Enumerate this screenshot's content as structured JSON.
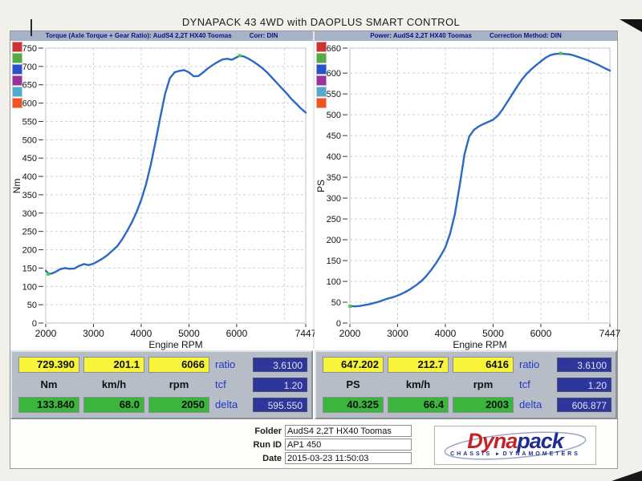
{
  "title": "DYNAPACK 43 4WD with DAOPLUS SMART CONTROL",
  "colors": {
    "curve_blue": "#2c68c5",
    "header_strip": "#a7b1c7",
    "header_text": "#12127e",
    "max_box_yellow": "#f7f43a",
    "min_box_green": "#3cb53c",
    "setting_box_navy": "#2e369b",
    "side_label_blue": "#2036c8",
    "panel_gray": "#b6bdc7",
    "logo_red": "#c42428",
    "logo_blue": "#1f2d8e"
  },
  "chart_data": [
    {
      "type": "line",
      "title": "Torque (Axle Torque + Gear Ratio): AudS4 2,2T HX40 Toomas",
      "correction": "Corr: DIN",
      "xlabel": "Engine RPM",
      "ylabel": "Nm",
      "xlim": [
        2000,
        7447
      ],
      "ylim": [
        0,
        750
      ],
      "x_ticks": [
        2000,
        3000,
        4000,
        5000,
        6000,
        7447
      ],
      "x_gridlines": [
        3000,
        4000,
        5000,
        6000,
        7000
      ],
      "y_ticks": [
        0,
        50,
        100,
        150,
        200,
        250,
        300,
        350,
        400,
        450,
        500,
        550,
        600,
        650,
        700,
        750
      ],
      "grid": true,
      "legend_position": "left",
      "line_color": "#2c68c5",
      "legend_swatches": [
        "#cc3333",
        "#55aa44",
        "#2a52c8",
        "#993399",
        "#55aacc",
        "#ee5522"
      ],
      "series": [
        {
          "name": "AudS4 2,2T HX40 Toomas",
          "points": [
            [
              2000,
              143
            ],
            [
              2060,
              135
            ],
            [
              2120,
              135
            ],
            [
              2200,
              139
            ],
            [
              2300,
              147
            ],
            [
              2400,
              150
            ],
            [
              2500,
              148
            ],
            [
              2600,
              149
            ],
            [
              2700,
              156
            ],
            [
              2800,
              161
            ],
            [
              2900,
              158
            ],
            [
              3000,
              162
            ],
            [
              3100,
              169
            ],
            [
              3200,
              177
            ],
            [
              3300,
              186
            ],
            [
              3400,
              198
            ],
            [
              3500,
              210
            ],
            [
              3600,
              228
            ],
            [
              3700,
              250
            ],
            [
              3800,
              274
            ],
            [
              3900,
              302
            ],
            [
              4000,
              336
            ],
            [
              4100,
              378
            ],
            [
              4200,
              432
            ],
            [
              4300,
              495
            ],
            [
              4400,
              562
            ],
            [
              4500,
              625
            ],
            [
              4600,
              668
            ],
            [
              4700,
              684
            ],
            [
              4800,
              688
            ],
            [
              4900,
              690
            ],
            [
              5000,
              684
            ],
            [
              5100,
              673
            ],
            [
              5200,
              674
            ],
            [
              5300,
              684
            ],
            [
              5400,
              695
            ],
            [
              5500,
              704
            ],
            [
              5600,
              712
            ],
            [
              5700,
              719
            ],
            [
              5800,
              721
            ],
            [
              5900,
              718
            ],
            [
              6000,
              725
            ],
            [
              6066,
              729
            ],
            [
              6150,
              727
            ],
            [
              6250,
              721
            ],
            [
              6350,
              713
            ],
            [
              6450,
              704
            ],
            [
              6550,
              694
            ],
            [
              6650,
              682
            ],
            [
              6750,
              668
            ],
            [
              6850,
              654
            ],
            [
              6950,
              640
            ],
            [
              7050,
              626
            ],
            [
              7150,
              611
            ],
            [
              7250,
              598
            ],
            [
              7350,
              585
            ],
            [
              7447,
              574
            ]
          ]
        }
      ],
      "markers": {
        "min": [
          2050,
          133.84
        ],
        "max": [
          6066,
          729.39
        ]
      }
    },
    {
      "type": "line",
      "title": "Power: AudS4 2,2T HX40 Toomas",
      "correction": "Correction Method: DIN",
      "xlabel": "Engine RPM",
      "ylabel": "PS",
      "xlim": [
        2000,
        7447
      ],
      "ylim": [
        0,
        660
      ],
      "x_ticks": [
        2000,
        3000,
        4000,
        5000,
        6000,
        7447
      ],
      "x_gridlines": [
        3000,
        4000,
        5000,
        6000,
        7000
      ],
      "y_ticks": [
        0,
        50,
        100,
        150,
        200,
        250,
        300,
        350,
        400,
        450,
        500,
        550,
        600,
        660
      ],
      "grid": true,
      "legend_position": "left",
      "line_color": "#2c68c5",
      "legend_swatches": [
        "#cc3333",
        "#55aa44",
        "#2a52c8",
        "#993399",
        "#55aacc",
        "#ee5522"
      ],
      "series": [
        {
          "name": "AudS4 2,2T HX40 Toomas",
          "points": [
            [
              2000,
              41
            ],
            [
              2100,
              40
            ],
            [
              2200,
              41
            ],
            [
              2300,
              43
            ],
            [
              2400,
              45
            ],
            [
              2500,
              48
            ],
            [
              2600,
              51
            ],
            [
              2700,
              55
            ],
            [
              2800,
              59
            ],
            [
              2900,
              62
            ],
            [
              3000,
              66
            ],
            [
              3100,
              71
            ],
            [
              3200,
              77
            ],
            [
              3300,
              84
            ],
            [
              3400,
              92
            ],
            [
              3500,
              101
            ],
            [
              3600,
              113
            ],
            [
              3700,
              127
            ],
            [
              3800,
              143
            ],
            [
              3900,
              161
            ],
            [
              4000,
              182
            ],
            [
              4100,
              215
            ],
            [
              4200,
              262
            ],
            [
              4300,
              330
            ],
            [
              4400,
              405
            ],
            [
              4500,
              448
            ],
            [
              4600,
              464
            ],
            [
              4700,
              472
            ],
            [
              4800,
              478
            ],
            [
              4900,
              483
            ],
            [
              5000,
              488
            ],
            [
              5100,
              498
            ],
            [
              5200,
              513
            ],
            [
              5300,
              531
            ],
            [
              5400,
              549
            ],
            [
              5500,
              567
            ],
            [
              5600,
              584
            ],
            [
              5700,
              598
            ],
            [
              5800,
              609
            ],
            [
              5900,
              619
            ],
            [
              6000,
              628
            ],
            [
              6100,
              637
            ],
            [
              6200,
              643
            ],
            [
              6300,
              646
            ],
            [
              6416,
              647
            ],
            [
              6500,
              646
            ],
            [
              6600,
              645
            ],
            [
              6700,
              642
            ],
            [
              6800,
              638
            ],
            [
              6900,
              634
            ],
            [
              7000,
              630
            ],
            [
              7100,
              625
            ],
            [
              7200,
              620
            ],
            [
              7300,
              614
            ],
            [
              7447,
              606
            ]
          ]
        }
      ],
      "markers": {
        "min": [
          2003,
          40.325
        ],
        "max": [
          6416,
          647.202
        ]
      }
    }
  ],
  "readouts": [
    {
      "max": [
        "729.390",
        "201.1",
        "6066"
      ],
      "units": [
        "Nm",
        "km/h",
        "rpm"
      ],
      "min": [
        "133.840",
        "68.0",
        "2050"
      ],
      "side_labels": [
        "ratio",
        "tcf",
        "delta"
      ],
      "ratio": "3.6100",
      "tcf": "1.20",
      "delta": "595.550"
    },
    {
      "max": [
        "647.202",
        "212.7",
        "6416"
      ],
      "units": [
        "PS",
        "km/h",
        "rpm"
      ],
      "min": [
        "40.325",
        "66.4",
        "2003"
      ],
      "side_labels": [
        "ratio",
        "tcf",
        "delta"
      ],
      "ratio": "3.6100",
      "tcf": "1.20",
      "delta": "606.877"
    }
  ],
  "footer": {
    "fields": [
      {
        "label": "Folder",
        "value": "AudS4 2,2T HX40 Toomas"
      },
      {
        "label": "Run ID",
        "value": "AP1 450"
      },
      {
        "label": "Date",
        "value": "2015-03-23 11:50:03"
      }
    ],
    "logo": {
      "part1": "Dyna",
      "part2": "pack",
      "sub1": "CHASSIS",
      "sub2": "DYNAMOMETERS",
      "triangle": "▸"
    }
  }
}
